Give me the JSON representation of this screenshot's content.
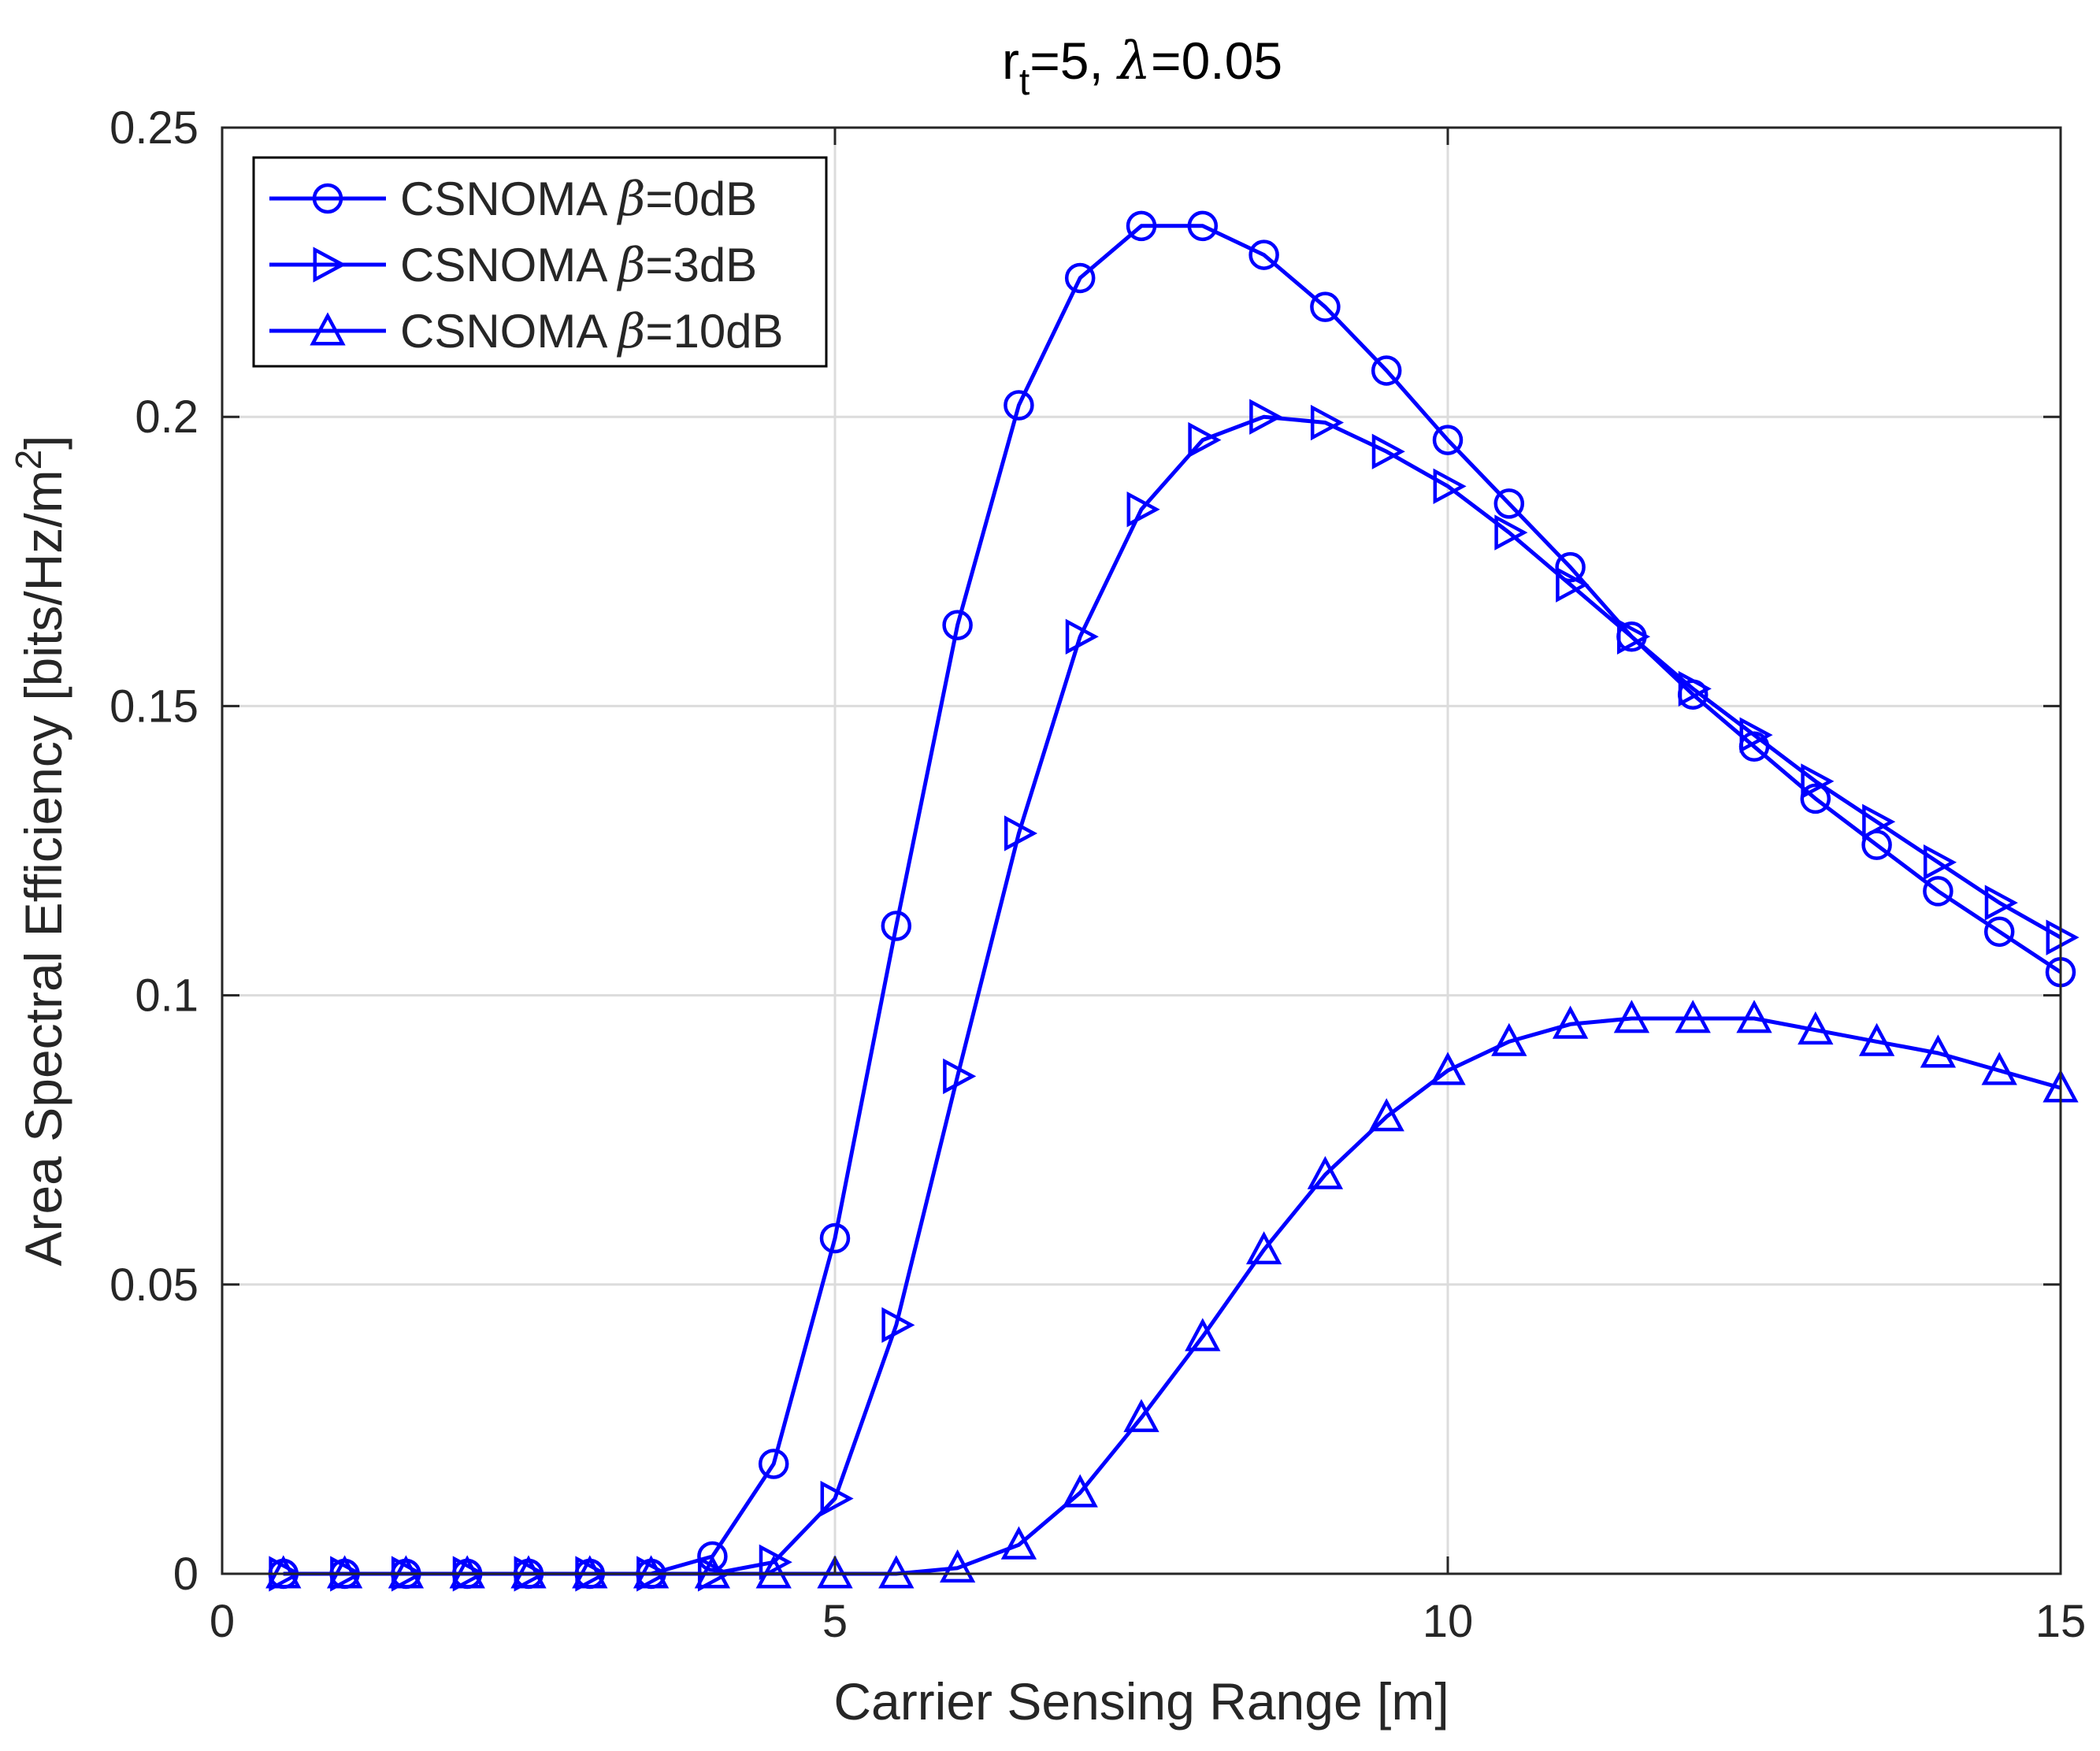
{
  "chart_data": {
    "type": "line",
    "title": "r_t=5, λ=0.05",
    "title_parts": {
      "r": "r",
      "sub": "t",
      "mid": "=5, ",
      "greek": "λ",
      "end": "=0.05"
    },
    "xlabel": "Carrier Sensing Range [m]",
    "ylabel_parts": {
      "main": "Area Spectral Efficiency [bits/Hz/m",
      "sup": "2",
      "end": "]"
    },
    "xlim": [
      0,
      15
    ],
    "ylim": [
      0,
      0.25
    ],
    "xticks": [
      0,
      5,
      10,
      15
    ],
    "xtick_labels": [
      "0",
      "5",
      "10",
      "15"
    ],
    "yticks": [
      0,
      0.05,
      0.1,
      0.15,
      0.2,
      0.25
    ],
    "ytick_labels": [
      "0",
      "0.05",
      "0.1",
      "0.15",
      "0.2",
      "0.25"
    ],
    "grid": true,
    "legend_position": "top-left",
    "x": [
      0.5,
      1,
      1.5,
      2,
      2.5,
      3,
      3.5,
      4,
      4.5,
      5,
      5.5,
      6,
      6.5,
      7,
      7.5,
      8,
      8.5,
      9,
      9.5,
      10,
      10.5,
      11,
      11.5,
      12,
      12.5,
      13,
      13.5,
      14,
      14.5,
      15
    ],
    "series": [
      {
        "name": "CSNOMA β=0dB",
        "label_prefix": "CSNOMA ",
        "label_greek": "β",
        "label_suffix": "=0dB",
        "marker": "circle",
        "color": "#0000ff",
        "values": [
          0,
          0,
          0,
          0,
          0,
          0,
          0,
          0.003,
          0.019,
          0.058,
          0.112,
          0.164,
          0.202,
          0.224,
          0.233,
          0.233,
          0.228,
          0.219,
          0.208,
          0.196,
          0.185,
          0.174,
          0.162,
          0.152,
          0.143,
          0.134,
          0.126,
          0.118,
          0.111,
          0.104
        ]
      },
      {
        "name": "CSNOMA β=3dB",
        "label_prefix": "CSNOMA ",
        "label_greek": "β",
        "label_suffix": "=3dB",
        "marker": "triangle-right",
        "color": "#0000ff",
        "values": [
          0,
          0,
          0,
          0,
          0,
          0,
          0,
          0,
          0.002,
          0.013,
          0.043,
          0.086,
          0.128,
          0.162,
          0.184,
          0.196,
          0.2,
          0.199,
          0.194,
          0.188,
          0.18,
          0.171,
          0.162,
          0.153,
          0.145,
          0.137,
          0.13,
          0.123,
          0.116,
          0.11
        ]
      },
      {
        "name": "CSNOMA β=10dB",
        "label_prefix": "CSNOMA ",
        "label_greek": "β",
        "label_suffix": "=10dB",
        "marker": "triangle-up",
        "color": "#0000ff",
        "values": [
          0,
          0,
          0,
          0,
          0,
          0,
          0,
          0,
          0,
          0,
          0,
          0.001,
          0.005,
          0.014,
          0.027,
          0.041,
          0.056,
          0.069,
          0.079,
          0.087,
          0.092,
          0.095,
          0.096,
          0.096,
          0.096,
          0.094,
          0.092,
          0.09,
          0.087,
          0.084
        ]
      }
    ]
  }
}
